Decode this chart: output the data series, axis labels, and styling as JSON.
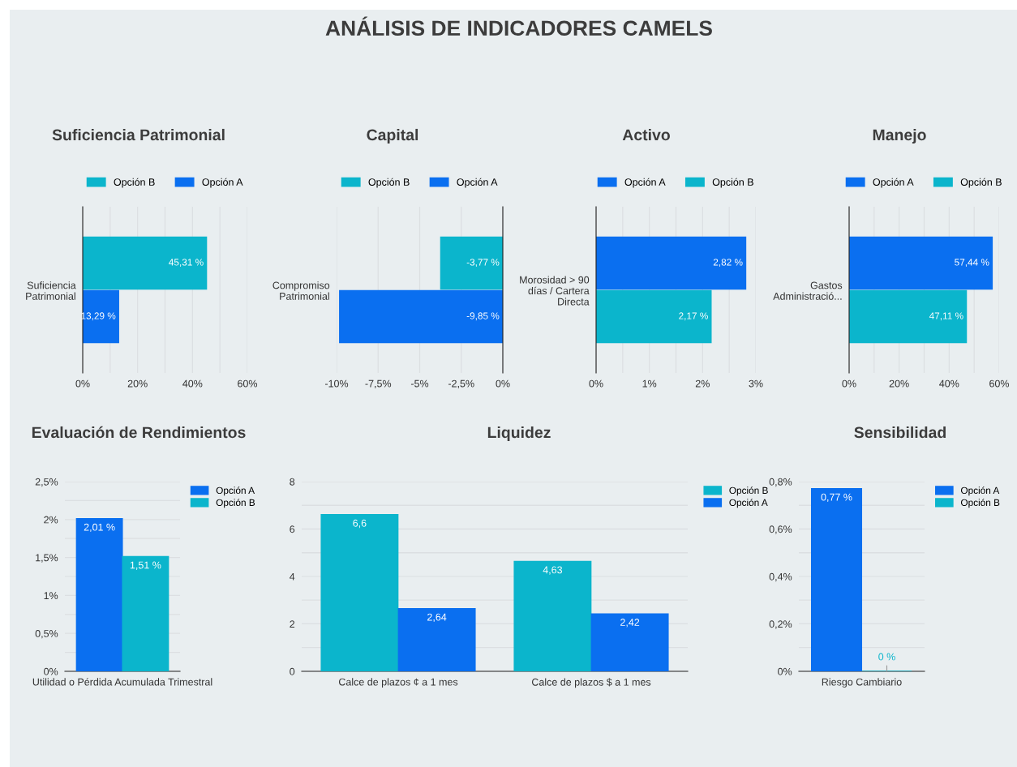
{
  "chart_data": [
    {
      "type": "other",
      "title": "ANÁLISIS DE INDICADORES CAMELS"
    },
    {
      "type": "bar",
      "orientation": "horizontal",
      "title": "Suficiencia Patrimonial",
      "categories": [
        "Suficiencia\nPatrimonial"
      ],
      "legend": "top",
      "grid": "x",
      "xlim": [
        0,
        60
      ],
      "xticks": [
        {
          "value": 0,
          "label": "0%"
        },
        {
          "value": 10,
          "label": null
        },
        {
          "value": 20,
          "label": "20%"
        },
        {
          "value": 30,
          "label": null
        },
        {
          "value": 40,
          "label": "40%"
        },
        {
          "value": 50,
          "label": null
        },
        {
          "value": 60,
          "label": "60%"
        }
      ],
      "series": [
        {
          "name": "Opción B",
          "color": "#0bb5cc",
          "values": [
            45.31
          ],
          "value_labels": [
            "45,31 %"
          ]
        },
        {
          "name": "Opción A",
          "color": "#0a6ff0",
          "values": [
            13.29
          ],
          "value_labels": [
            "13,29 %"
          ]
        }
      ]
    },
    {
      "type": "bar",
      "orientation": "horizontal",
      "title": "Capital",
      "categories": [
        "Compromiso\nPatrimonial"
      ],
      "legend": "top",
      "grid": "x",
      "xlim": [
        -10,
        0
      ],
      "xticks": [
        {
          "value": -10,
          "label": "-10%"
        },
        {
          "value": -7.5,
          "label": "-7,5%"
        },
        {
          "value": -5,
          "label": "-5%"
        },
        {
          "value": -2.5,
          "label": "-2,5%"
        },
        {
          "value": 0,
          "label": "0%"
        }
      ],
      "series": [
        {
          "name": "Opción B",
          "color": "#0bb5cc",
          "values": [
            -3.77
          ],
          "value_labels": [
            "-3,77 %"
          ]
        },
        {
          "name": "Opción A",
          "color": "#0a6ff0",
          "values": [
            -9.85
          ],
          "value_labels": [
            "-9,85 %"
          ]
        }
      ]
    },
    {
      "type": "bar",
      "orientation": "horizontal",
      "title": "Activo",
      "categories": [
        "Morosidad > 90\ndías / Cartera\nDirecta"
      ],
      "legend": "top",
      "grid": "x",
      "xlim": [
        0,
        3
      ],
      "xticks": [
        {
          "value": 0,
          "label": "0%"
        },
        {
          "value": 0.5,
          "label": null
        },
        {
          "value": 1,
          "label": "1%"
        },
        {
          "value": 1.5,
          "label": null
        },
        {
          "value": 2,
          "label": "2%"
        },
        {
          "value": 2.5,
          "label": null
        },
        {
          "value": 3,
          "label": "3%"
        }
      ],
      "series": [
        {
          "name": "Opción A",
          "color": "#0a6ff0",
          "values": [
            2.82
          ],
          "value_labels": [
            "2,82 %"
          ]
        },
        {
          "name": "Opción B",
          "color": "#0bb5cc",
          "values": [
            2.17
          ],
          "value_labels": [
            "2,17 %"
          ]
        }
      ]
    },
    {
      "type": "bar",
      "orientation": "horizontal",
      "title": "Manejo",
      "categories": [
        "Gastos\nAdministració..."
      ],
      "legend": "top",
      "grid": "x",
      "xlim": [
        0,
        60
      ],
      "xticks": [
        {
          "value": 0,
          "label": "0%"
        },
        {
          "value": 10,
          "label": null
        },
        {
          "value": 20,
          "label": "20%"
        },
        {
          "value": 30,
          "label": null
        },
        {
          "value": 40,
          "label": "40%"
        },
        {
          "value": 50,
          "label": null
        },
        {
          "value": 60,
          "label": "60%"
        }
      ],
      "series": [
        {
          "name": "Opción A",
          "color": "#0a6ff0",
          "values": [
            57.44
          ],
          "value_labels": [
            "57,44 %"
          ]
        },
        {
          "name": "Opción B",
          "color": "#0bb5cc",
          "values": [
            47.11
          ],
          "value_labels": [
            "47,11 %"
          ]
        }
      ]
    },
    {
      "type": "bar",
      "title": "Evaluación de Rendimientos",
      "categories": [
        "Utilidad o Pérdida Acumulada Trimestral"
      ],
      "legend": "right",
      "grid": "y",
      "ylim": [
        0,
        2.5
      ],
      "yticks": [
        {
          "value": 0,
          "label": "0%"
        },
        {
          "value": 0.25,
          "label": null
        },
        {
          "value": 0.5,
          "label": "0,5%"
        },
        {
          "value": 0.75,
          "label": null
        },
        {
          "value": 1,
          "label": "1%"
        },
        {
          "value": 1.25,
          "label": null
        },
        {
          "value": 1.5,
          "label": "1,5%"
        },
        {
          "value": 1.75,
          "label": null
        },
        {
          "value": 2,
          "label": "2%"
        },
        {
          "value": 2.25,
          "label": null
        },
        {
          "value": 2.5,
          "label": "2,5%"
        }
      ],
      "series": [
        {
          "name": "Opción A",
          "color": "#0a6ff0",
          "values": [
            2.01
          ],
          "value_labels": [
            "2,01 %"
          ]
        },
        {
          "name": "Opción B",
          "color": "#0bb5cc",
          "values": [
            1.51
          ],
          "value_labels": [
            "1,51 %"
          ]
        }
      ]
    },
    {
      "type": "bar",
      "title": "Liquidez",
      "categories": [
        "Calce de plazos ¢ a 1 mes",
        "Calce de plazos $ a 1 mes"
      ],
      "legend": "right",
      "grid": "y",
      "ylim": [
        0,
        8
      ],
      "yticks": [
        0,
        {
          "value": 1,
          "label": null
        },
        2,
        {
          "value": 3,
          "label": null
        },
        4,
        {
          "value": 5,
          "label": null
        },
        6,
        {
          "value": 7,
          "label": null
        },
        8
      ],
      "series": [
        {
          "name": "Opción B",
          "color": "#0bb5cc",
          "values": [
            6.6,
            4.63
          ],
          "value_labels": [
            "6,6",
            "4,63"
          ]
        },
        {
          "name": "Opción A",
          "color": "#0a6ff0",
          "values": [
            2.64,
            2.42
          ],
          "value_labels": [
            "2,64",
            "2,42"
          ]
        }
      ]
    },
    {
      "type": "bar",
      "title": "Sensibilidad",
      "categories": [
        "Riesgo Cambiario"
      ],
      "legend": "right",
      "grid": "y",
      "ylim": [
        0,
        0.8
      ],
      "yticks": [
        {
          "value": 0,
          "label": "0%"
        },
        {
          "value": 0.1,
          "label": null
        },
        {
          "value": 0.2,
          "label": "0,2%"
        },
        {
          "value": 0.3,
          "label": null
        },
        {
          "value": 0.4,
          "label": "0,4%"
        },
        {
          "value": 0.5,
          "label": null
        },
        {
          "value": 0.6,
          "label": "0,6%"
        },
        {
          "value": 0.7,
          "label": null
        },
        {
          "value": 0.8,
          "label": "0,8%"
        }
      ],
      "series": [
        {
          "name": "Opción A",
          "color": "#0a6ff0",
          "values": [
            0.77
          ],
          "value_labels": [
            "0,77 %"
          ]
        },
        {
          "name": "Opción B",
          "color": "#0bb5cc",
          "values": [
            0
          ],
          "value_labels": [
            "0 %"
          ]
        }
      ]
    }
  ]
}
